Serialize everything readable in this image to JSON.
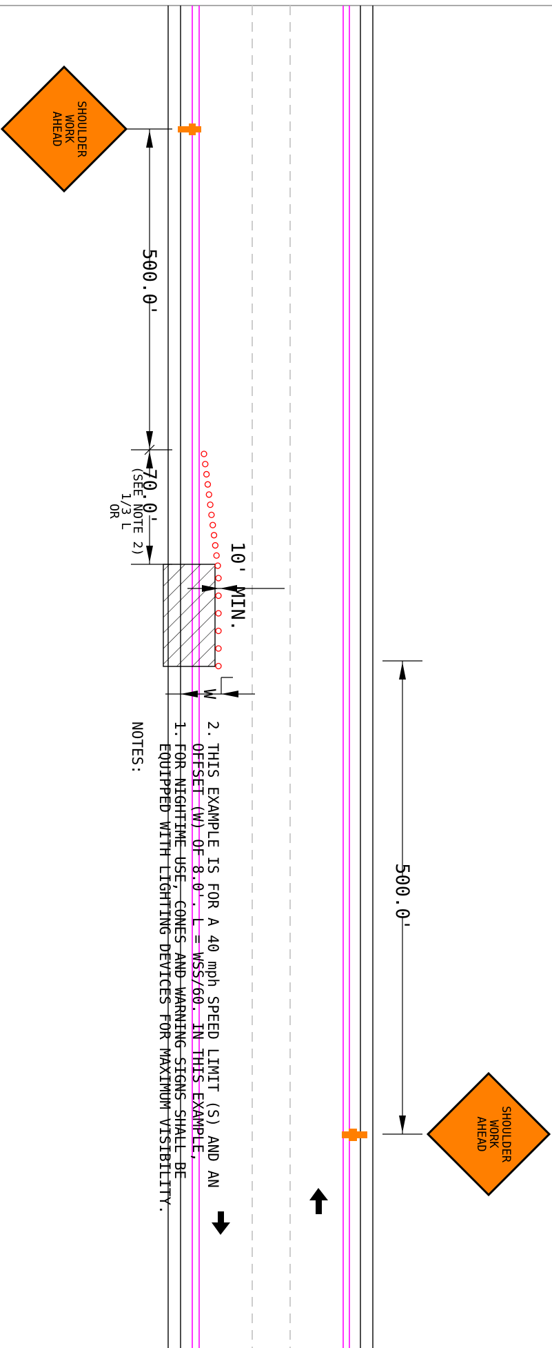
{
  "signs": {
    "top": {
      "lines": [
        "SHOULDER",
        "WORK",
        "AHEAD"
      ],
      "color": "#ff7f00"
    },
    "bottom": {
      "lines": [
        "SHOULDER",
        "WORK",
        "AHEAD"
      ],
      "color": "#ff7f00"
    }
  },
  "dimensions": {
    "sign_spacing_top": "500.0'",
    "taper_length": "70.0'",
    "taper_alt_1": "OR",
    "taper_alt_2": "1/3 L",
    "taper_alt_3": "(SEE NOTE 2)",
    "buffer_min": "10' MIN.",
    "offset_label": "W",
    "sign_spacing_bottom": "500.0'"
  },
  "notes": {
    "heading": "NOTES:",
    "items": [
      {
        "number": "1.",
        "line1": "FOR NIGHTIME USE, CONES AND WARNING SIGNS SHALL BE",
        "line2": "EQUIPPED WITH LIGHTING DEVICES FOR MAXIMUM VISIBILITY."
      },
      {
        "number": "2.",
        "line1": "THIS EXAMPLE IS FOR A 40 mph SPEED LIMIT (S) AND AN",
        "line2": "OFFSET (W) OF 8.0'.  L = WSS/60.  IN THIS EXAMPLE,"
      }
    ]
  },
  "colors": {
    "lane_line": "#ff00ff",
    "cone": "#ff0000",
    "centerline": "#cccccc",
    "device": "#ff7f00"
  }
}
